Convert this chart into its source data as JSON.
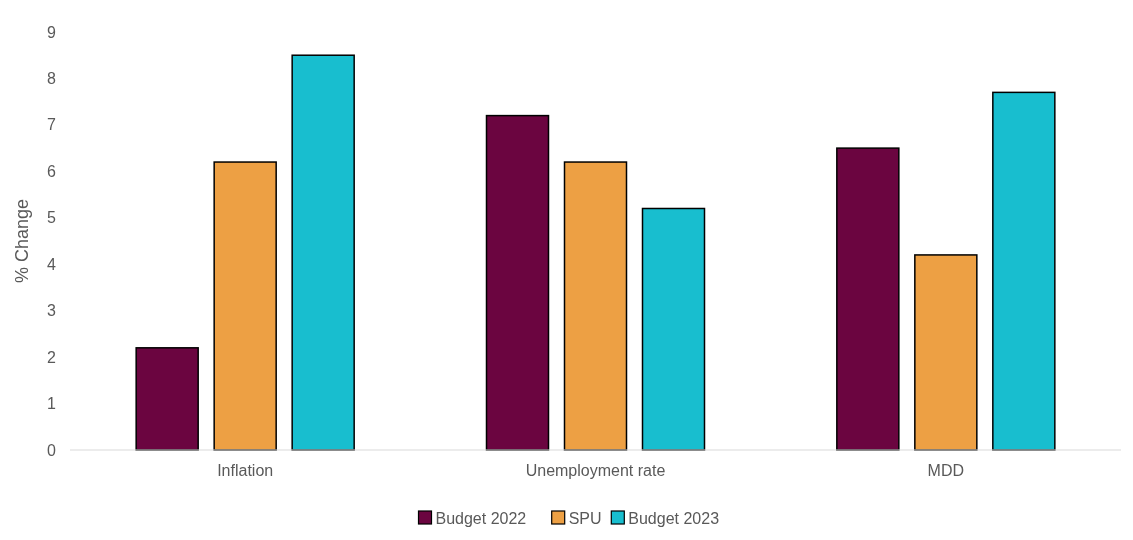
{
  "chart_data": {
    "type": "bar",
    "ylabel": "% Change",
    "categories": [
      "Inflation",
      "Unemployment rate",
      "MDD"
    ],
    "series": [
      {
        "name": "Budget 2022",
        "color": "#6b0540",
        "values": [
          2.2,
          7.2,
          6.5
        ]
      },
      {
        "name": "SPU",
        "color": "#eda044",
        "values": [
          6.2,
          6.2,
          4.2
        ]
      },
      {
        "name": "Budget 2023",
        "color": "#18becf",
        "values": [
          8.5,
          5.2,
          7.7
        ]
      }
    ],
    "ylim": [
      0,
      9
    ],
    "yticks": [
      0,
      1,
      2,
      3,
      4,
      5,
      6,
      7,
      8,
      9
    ],
    "grid": false,
    "legend": "bottom"
  }
}
